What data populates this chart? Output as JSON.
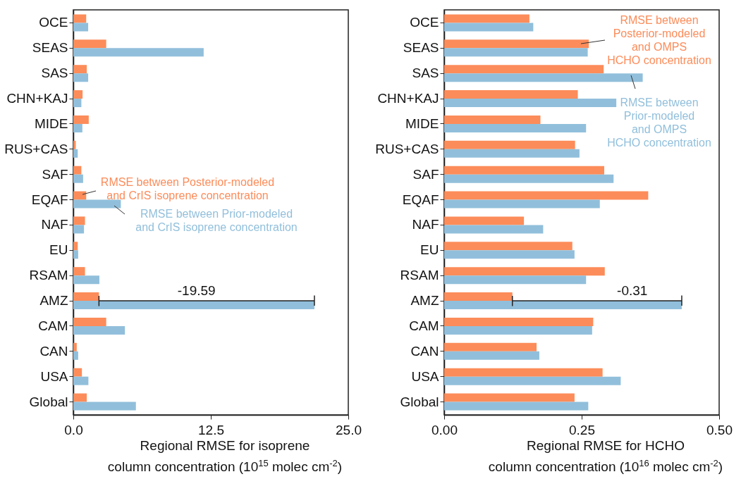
{
  "chart_data": [
    {
      "type": "bar",
      "orientation": "horizontal",
      "categories": [
        "OCE",
        "SEAS",
        "SAS",
        "CHN+KAJ",
        "MIDE",
        "RUS+CAS",
        "SAF",
        "EQAF",
        "NAF",
        "EU",
        "RSAM",
        "AMZ",
        "CAM",
        "CAN",
        "USA",
        "Global"
      ],
      "series": [
        {
          "name": "RMSE between Posterior-modeled\nand CrIS isoprene concentration",
          "color": "#fc8c5a",
          "values": [
            1.17,
            2.99,
            1.22,
            0.84,
            1.4,
            0.22,
            0.73,
            1.17,
            1.06,
            0.4,
            1.06,
            2.33,
            2.99,
            0.31,
            0.78,
            1.22
          ]
        },
        {
          "name": "RMSE between Prior-modeled\nand CrIS isoprene concentration",
          "color": "#91bfdb",
          "values": [
            1.35,
            11.85,
            1.35,
            0.73,
            0.82,
            0.4,
            0.89,
            4.32,
            0.97,
            0.44,
            2.37,
            21.92,
            4.69,
            0.44,
            1.37,
            5.69
          ]
        }
      ],
      "xlim": [
        0,
        25
      ],
      "xticks": [
        {
          "value": 0,
          "label": "0.0"
        },
        12.5,
        {
          "value": 25,
          "label": "25.0"
        }
      ],
      "xlabel": "Regional RMSE for isoprene\ncolumn concentration (10$^{15}$ molec cm$^{-2}$)",
      "annotations": [
        {
          "text": "-19.59",
          "x": 11.2,
          "y": "AMZ"
        }
      ]
    },
    {
      "type": "bar",
      "orientation": "horizontal",
      "categories": [
        "OCE",
        "SEAS",
        "SAS",
        "CHN+KAJ",
        "MIDE",
        "RUS+CAS",
        "SAF",
        "EQAF",
        "NAF",
        "EU",
        "RSAM",
        "AMZ",
        "CAM",
        "CAN",
        "USA",
        "Global"
      ],
      "series": [
        {
          "name": "RMSE between\nPosterior-modeled\nand OMPS\nHCHO concentration",
          "color": "#fc8c5a",
          "values": [
            0.155,
            0.263,
            0.29,
            0.243,
            0.175,
            0.238,
            0.291,
            0.371,
            0.145,
            0.233,
            0.292,
            0.124,
            0.271,
            0.168,
            0.288,
            0.237
          ]
        },
        {
          "name": "RMSE between\nPrior-modeled\nand OMPS\nHCHO concentration",
          "color": "#91bfdb",
          "values": [
            0.162,
            0.261,
            0.361,
            0.313,
            0.258,
            0.246,
            0.308,
            0.283,
            0.18,
            0.237,
            0.258,
            0.432,
            0.269,
            0.173,
            0.321,
            0.262
          ]
        }
      ],
      "xlim": [
        0,
        0.5
      ],
      "xticks": [
        {
          "value": 0,
          "label": "0.00"
        },
        0.25,
        {
          "value": 0.5,
          "label": "0.50"
        }
      ],
      "xlabel": "Regional RMSE for HCHO\ncolumn concentration (10$^{16}$ molec cm$^{-2}$)",
      "annotations": [
        {
          "text": "-0.31",
          "x": 0.342,
          "y": "AMZ"
        }
      ]
    }
  ]
}
